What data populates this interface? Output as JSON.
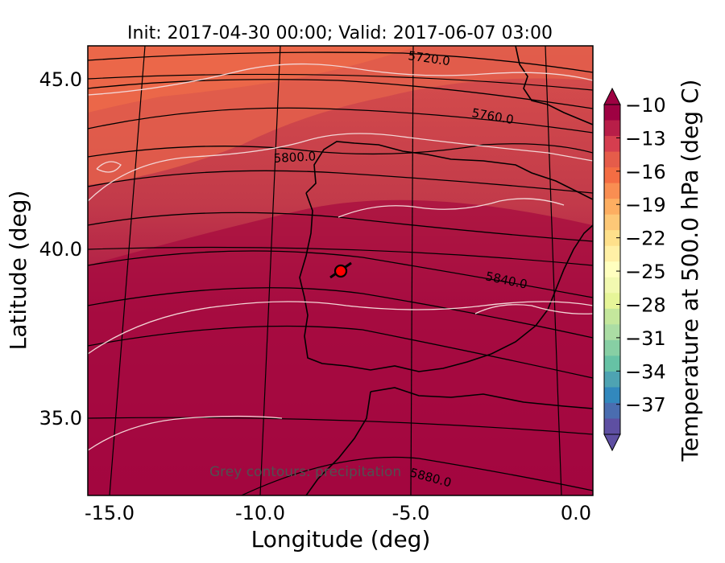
{
  "title": "Init: 2017-04-30 00:00; Valid: 2017-06-07 03:00",
  "map": {
    "xlabel": "Longitude (deg)",
    "ylabel": "Latitude (deg)",
    "xlim": [
      -16.0,
      0.2
    ],
    "ylim": [
      32.7,
      46.0
    ],
    "xticks": [
      "-15.0",
      "-10.0",
      "-5.0",
      "0.0"
    ],
    "yticks": [
      "45.0",
      "40.0",
      "35.0"
    ],
    "field": "Temperature at 500.0 hPa (deg C)",
    "contour_labels": [
      "5720.0",
      "5760.0",
      "5800.0",
      "5840.0",
      "5880.0"
    ],
    "note": "Grey contours: precipitation",
    "marker": {
      "lon": -7.6,
      "lat": 39.3,
      "color": "#ff0000"
    }
  },
  "colorbar": {
    "label": "Temperature at 500.0 hPa (deg C)",
    "ticks": [
      "−10",
      "−13",
      "−16",
      "−19",
      "−22",
      "−25",
      "−28",
      "−31",
      "−34",
      "−37"
    ],
    "colormap": [
      "#9e0142",
      "#b81e48",
      "#d53e4f",
      "#e55c4a",
      "#f46d43",
      "#f98e52",
      "#fdae61",
      "#fdc877",
      "#fee08b",
      "#fff0a6",
      "#ffffbf",
      "#f2f9b0",
      "#e6f598",
      "#c4e79c",
      "#abdda4",
      "#87cfa4",
      "#66c2a5",
      "#4ea3b2",
      "#3288bd",
      "#4a6db0",
      "#5e4fa2"
    ]
  }
}
